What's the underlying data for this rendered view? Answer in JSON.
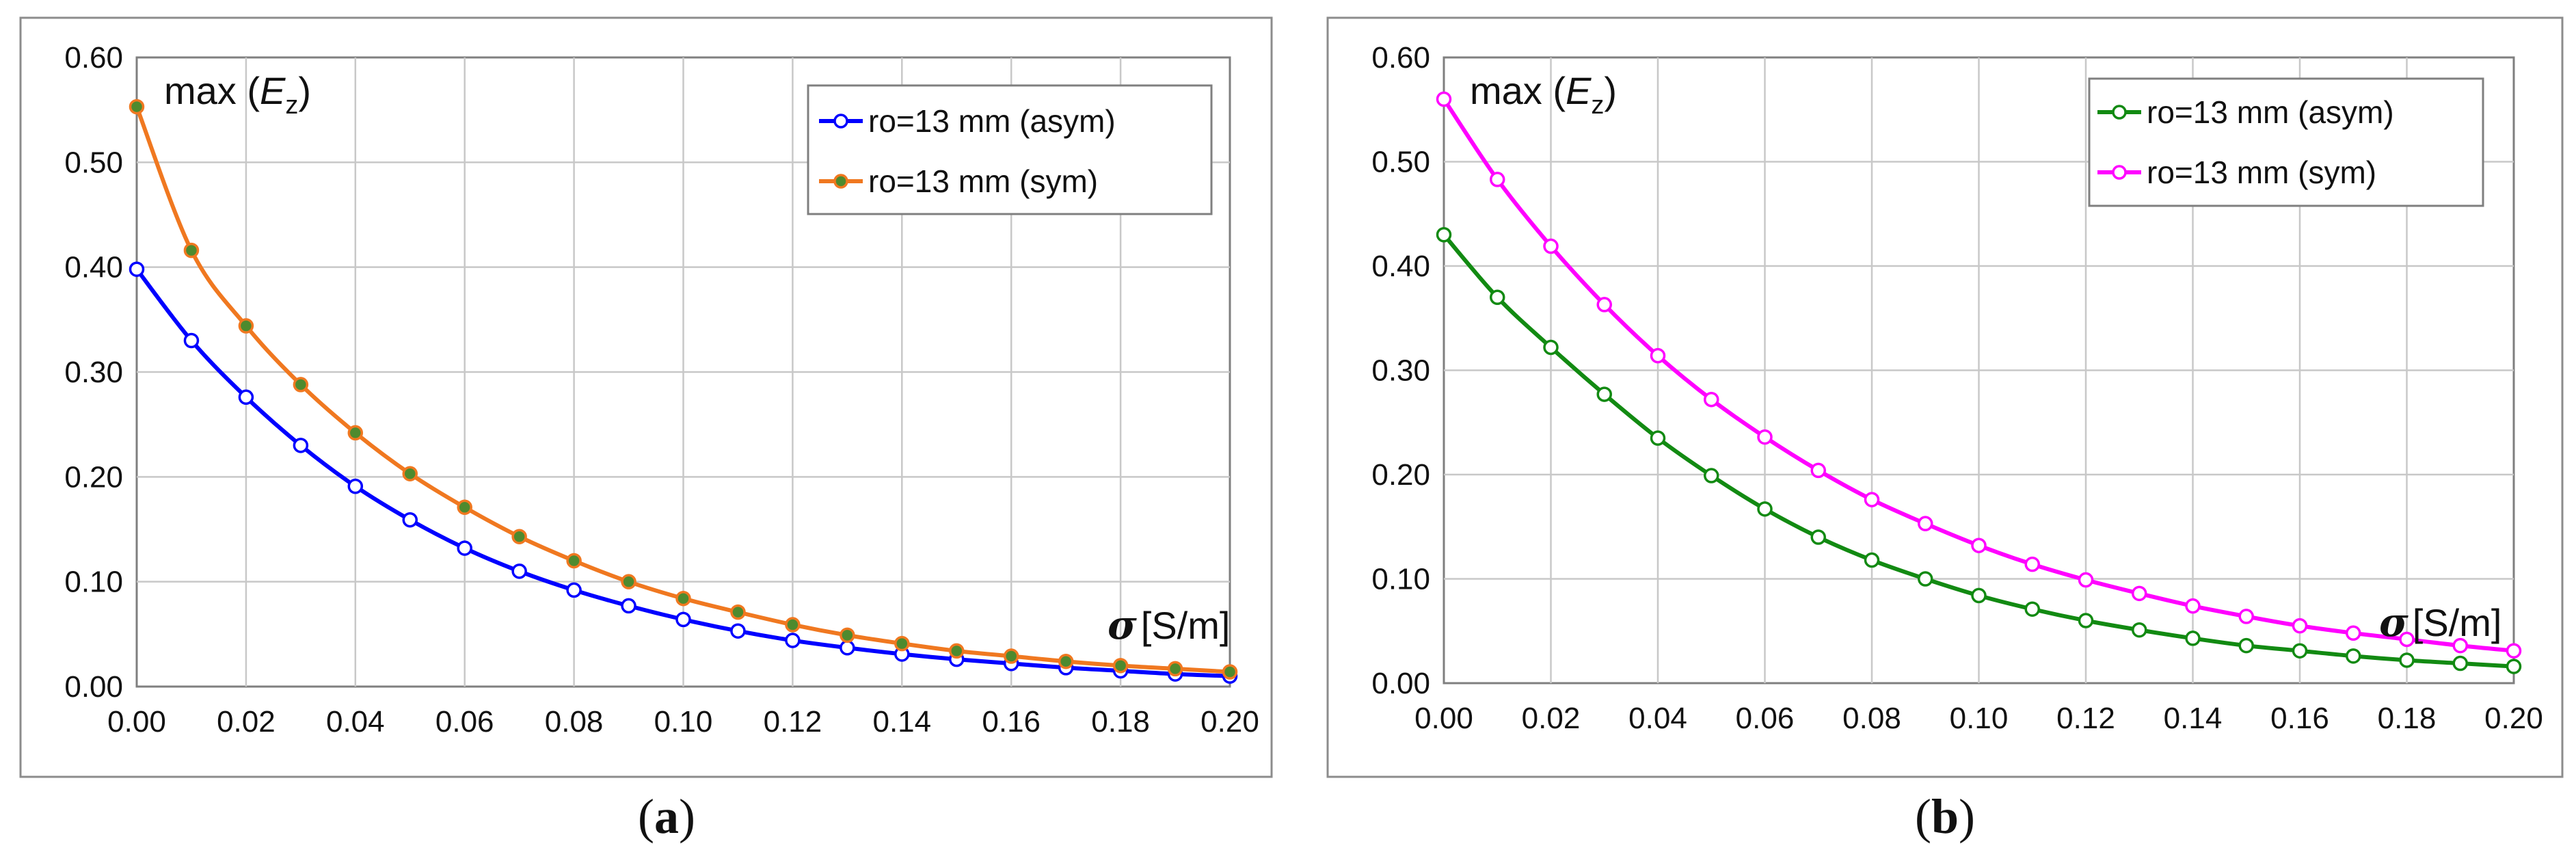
{
  "chart_data": [
    {
      "type": "line",
      "panel": "a",
      "caption_open": "(",
      "caption_letter": "a",
      "caption_close": ")",
      "ylabel_prefix": "max (",
      "ylabel_var": "E",
      "ylabel_sub": "z",
      "ylabel_suffix": ")",
      "xlabel_symbol": "σ",
      "xlabel_unit": "[S/m]",
      "xlim": [
        0,
        0.2
      ],
      "ylim": [
        0,
        0.6
      ],
      "x_ticks": [
        "0.00",
        "0.02",
        "0.04",
        "0.06",
        "0.08",
        "0.10",
        "0.12",
        "0.14",
        "0.16",
        "0.18",
        "0.20"
      ],
      "y_ticks": [
        "0.00",
        "0.10",
        "0.20",
        "0.30",
        "0.40",
        "0.50",
        "0.60"
      ],
      "grid": true,
      "legend_position": "top-right",
      "x": [
        0.0,
        0.01,
        0.02,
        0.03,
        0.04,
        0.05,
        0.06,
        0.07,
        0.08,
        0.09,
        0.1,
        0.11,
        0.12,
        0.13,
        0.14,
        0.15,
        0.16,
        0.17,
        0.18,
        0.19,
        0.2
      ],
      "series": [
        {
          "name": "ro=13 mm (asym)",
          "color": "#0000ff",
          "marker_fill": "#ffffff",
          "values": [
            0.398,
            0.33,
            0.276,
            0.23,
            0.191,
            0.159,
            0.132,
            0.11,
            0.092,
            0.077,
            0.064,
            0.053,
            0.044,
            0.037,
            0.031,
            0.026,
            0.022,
            0.018,
            0.015,
            0.012,
            0.01
          ]
        },
        {
          "name": "ro=13 mm (sym)",
          "color": "#f07820",
          "marker_fill": "#4e8a2e",
          "values": [
            0.553,
            0.416,
            0.344,
            0.288,
            0.242,
            0.203,
            0.171,
            0.143,
            0.12,
            0.1,
            0.084,
            0.071,
            0.059,
            0.049,
            0.041,
            0.034,
            0.029,
            0.024,
            0.02,
            0.017,
            0.014
          ]
        }
      ]
    },
    {
      "type": "line",
      "panel": "b",
      "caption_open": "(",
      "caption_letter": "b",
      "caption_close": ")",
      "ylabel_prefix": "max (",
      "ylabel_var": "E",
      "ylabel_sub": "z",
      "ylabel_suffix": ")",
      "xlabel_symbol": "σ",
      "xlabel_unit": "[S/m]",
      "xlim": [
        0,
        0.2
      ],
      "ylim": [
        0,
        0.6
      ],
      "x_ticks": [
        "0.00",
        "0.02",
        "0.04",
        "0.06",
        "0.08",
        "0.10",
        "0.12",
        "0.14",
        "0.16",
        "0.18",
        "0.20"
      ],
      "y_ticks": [
        "0.00",
        "0.10",
        "0.20",
        "0.30",
        "0.40",
        "0.50",
        "0.60"
      ],
      "grid": true,
      "legend_position": "top-right",
      "x": [
        0.0,
        0.01,
        0.02,
        0.03,
        0.04,
        0.05,
        0.06,
        0.07,
        0.08,
        0.09,
        0.1,
        0.11,
        0.12,
        0.13,
        0.14,
        0.15,
        0.16,
        0.17,
        0.18,
        0.19,
        0.2
      ],
      "series": [
        {
          "name": "ro=13 mm (asym)",
          "color": "#128a12",
          "marker_fill": "#ffffff",
          "values": [
            0.43,
            0.37,
            0.322,
            0.277,
            0.235,
            0.199,
            0.167,
            0.14,
            0.118,
            0.1,
            0.084,
            0.071,
            0.06,
            0.051,
            0.043,
            0.036,
            0.031,
            0.026,
            0.022,
            0.019,
            0.016
          ]
        },
        {
          "name": "ro=13 mm (sym)",
          "color": "#ff00ff",
          "marker_fill": "#ffffff",
          "values": [
            0.56,
            0.483,
            0.419,
            0.363,
            0.314,
            0.272,
            0.236,
            0.204,
            0.176,
            0.153,
            0.132,
            0.114,
            0.099,
            0.086,
            0.074,
            0.064,
            0.055,
            0.048,
            0.042,
            0.036,
            0.031
          ]
        }
      ]
    }
  ]
}
